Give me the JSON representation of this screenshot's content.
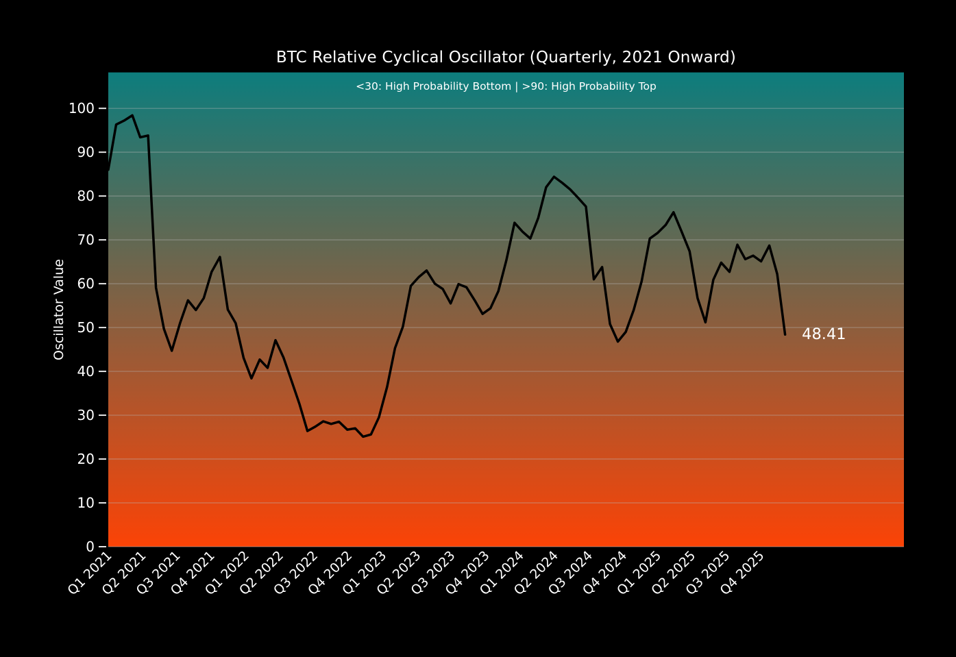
{
  "figure": {
    "background": "#000000",
    "text_color": "#ffffff"
  },
  "colors": {
    "plot_gradient_top": "#0d7d7d",
    "plot_gradient_bottom": "#fb4306",
    "line": "#000000",
    "grid": "#b8b8b8",
    "tick_mark": "#e6e6e6",
    "tick_label": "#ffffff"
  },
  "title": "BTC Relative Cyclical Oscillator (Quarterly, 2021 Onward)",
  "subtitle": "<30: High Probability Bottom | >90: High Probability Top",
  "ylabel": "Oscillator Value",
  "annotation": {
    "text": "48.41",
    "q": 20.2,
    "v": 48.4
  },
  "chart_data": {
    "type": "line",
    "title": "BTC Relative Cyclical Oscillator (Quarterly, 2021 Onward)",
    "subtitle": "<30: High Probability Bottom | >90: High Probability Top",
    "xlabel": "",
    "ylabel": "Oscillator Value",
    "grid": "horizontal",
    "legend": "none",
    "ylim": [
      0,
      108.2
    ],
    "xlim_quarters": [
      0,
      23.17
    ],
    "y_ticks": [
      0,
      10,
      20,
      30,
      40,
      50,
      60,
      70,
      80,
      90,
      100
    ],
    "x_tick_labels": [
      "Q1 2021",
      "Q2 2021",
      "Q3 2021",
      "Q4 2021",
      "Q1 2022",
      "Q2 2022",
      "Q3 2022",
      "Q4 2022",
      "Q1 2023",
      "Q2 2023",
      "Q3 2023",
      "Q4 2023",
      "Q1 2024",
      "Q2 2024",
      "Q3 2024",
      "Q4 2024",
      "Q1 2025",
      "Q2 2025",
      "Q3 2025",
      "Q4 2025"
    ],
    "x_tick_rotation_deg": 45,
    "last_value": 48.41,
    "series": [
      {
        "name": "BTC Relative Cyclical Oscillator",
        "color": "#000000",
        "points": [
          [
            0.0,
            86.0
          ],
          [
            0.23,
            96.3
          ],
          [
            0.46,
            97.2
          ],
          [
            0.7,
            98.4
          ],
          [
            0.93,
            93.4
          ],
          [
            1.16,
            93.8
          ],
          [
            1.39,
            59.1
          ],
          [
            1.62,
            49.7
          ],
          [
            1.85,
            44.7
          ],
          [
            2.09,
            51.0
          ],
          [
            2.32,
            56.2
          ],
          [
            2.55,
            54.0
          ],
          [
            2.78,
            56.7
          ],
          [
            3.01,
            62.7
          ],
          [
            3.25,
            66.1
          ],
          [
            3.48,
            54.1
          ],
          [
            3.71,
            51.0
          ],
          [
            3.94,
            43.1
          ],
          [
            4.17,
            38.4
          ],
          [
            4.41,
            42.7
          ],
          [
            4.64,
            40.8
          ],
          [
            4.87,
            47.1
          ],
          [
            5.1,
            43.2
          ],
          [
            5.33,
            38.0
          ],
          [
            5.57,
            32.5
          ],
          [
            5.8,
            26.4
          ],
          [
            6.03,
            27.4
          ],
          [
            6.26,
            28.6
          ],
          [
            6.49,
            28.0
          ],
          [
            6.72,
            28.5
          ],
          [
            6.96,
            26.7
          ],
          [
            7.19,
            27.0
          ],
          [
            7.42,
            25.1
          ],
          [
            7.65,
            25.6
          ],
          [
            7.88,
            29.5
          ],
          [
            8.12,
            36.5
          ],
          [
            8.35,
            45.3
          ],
          [
            8.58,
            50.2
          ],
          [
            8.81,
            59.5
          ],
          [
            9.04,
            61.5
          ],
          [
            9.27,
            63.0
          ],
          [
            9.51,
            60.0
          ],
          [
            9.74,
            58.8
          ],
          [
            9.97,
            55.5
          ],
          [
            10.2,
            59.9
          ],
          [
            10.43,
            59.2
          ],
          [
            10.67,
            56.2
          ],
          [
            10.9,
            53.1
          ],
          [
            11.13,
            54.4
          ],
          [
            11.36,
            58.3
          ],
          [
            11.59,
            65.3
          ],
          [
            11.83,
            73.9
          ],
          [
            12.06,
            71.9
          ],
          [
            12.29,
            70.3
          ],
          [
            12.52,
            75.0
          ],
          [
            12.75,
            82.0
          ],
          [
            12.98,
            84.4
          ],
          [
            13.22,
            83.0
          ],
          [
            13.45,
            81.5
          ],
          [
            13.68,
            79.6
          ],
          [
            13.91,
            77.6
          ],
          [
            14.14,
            61.0
          ],
          [
            14.38,
            63.8
          ],
          [
            14.61,
            50.8
          ],
          [
            14.84,
            46.8
          ],
          [
            15.07,
            49.0
          ],
          [
            15.3,
            54.0
          ],
          [
            15.53,
            60.5
          ],
          [
            15.77,
            70.3
          ],
          [
            16.0,
            71.6
          ],
          [
            16.23,
            73.4
          ],
          [
            16.46,
            76.3
          ],
          [
            16.69,
            72.0
          ],
          [
            16.93,
            67.4
          ],
          [
            17.16,
            56.7
          ],
          [
            17.39,
            51.2
          ],
          [
            17.62,
            60.9
          ],
          [
            17.85,
            64.8
          ],
          [
            18.09,
            62.7
          ],
          [
            18.32,
            68.9
          ],
          [
            18.55,
            65.6
          ],
          [
            18.78,
            66.4
          ],
          [
            19.01,
            65.1
          ],
          [
            19.25,
            68.7
          ],
          [
            19.48,
            62.2
          ],
          [
            19.71,
            48.41
          ]
        ]
      }
    ]
  }
}
